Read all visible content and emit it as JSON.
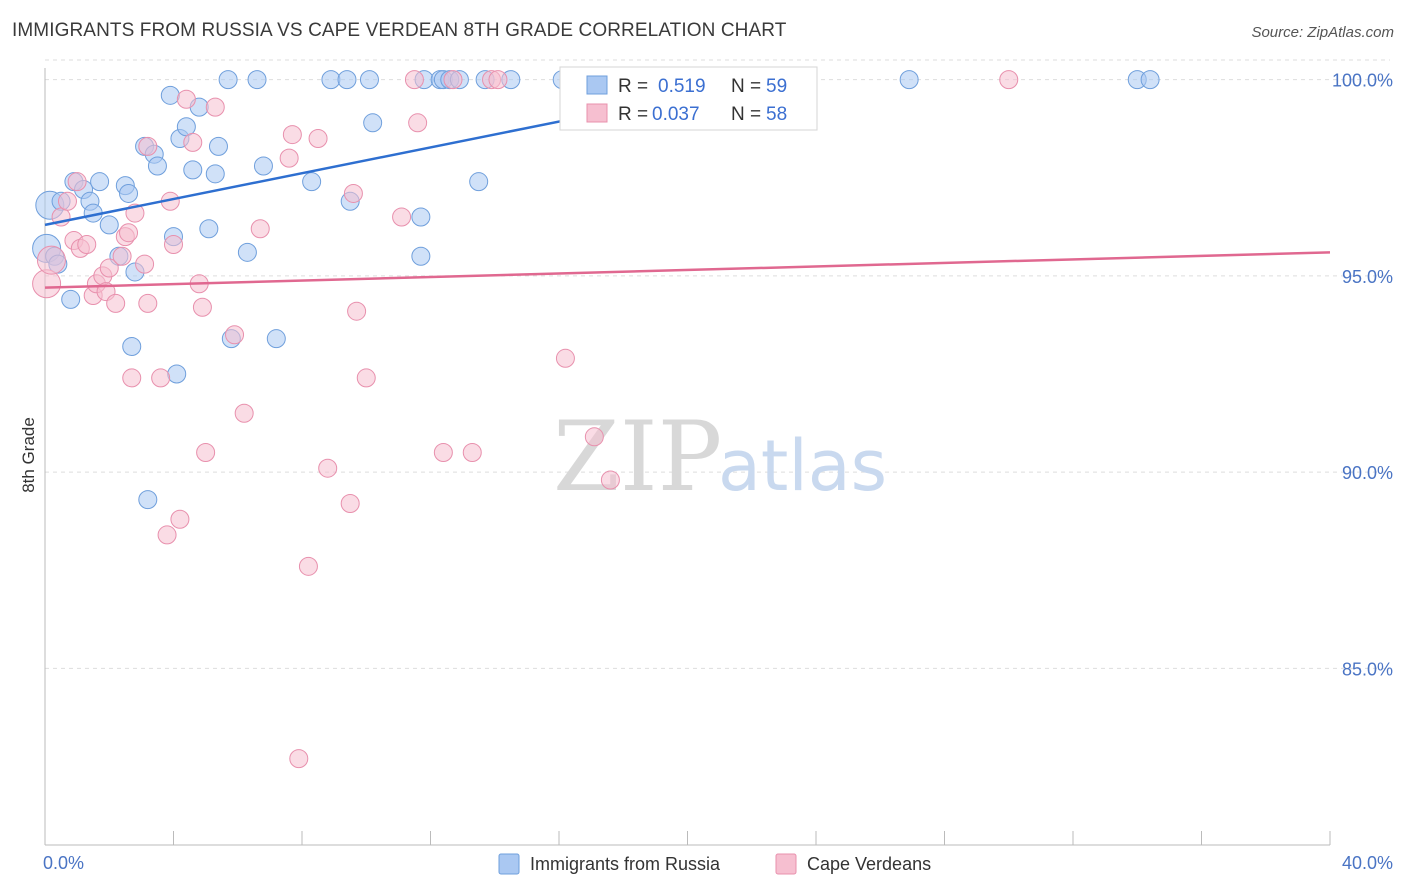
{
  "title": "IMMIGRANTS FROM RUSSIA VS CAPE VERDEAN 8TH GRADE CORRELATION CHART",
  "source": "Source: ZipAtlas.com",
  "watermark": {
    "zip": "ZIP",
    "atlas": "atlas"
  },
  "legend_stats": {
    "r_label": "R =",
    "n_label": "N =",
    "russia": {
      "r": "0.519",
      "n": "59"
    },
    "cape": {
      "r": "0.037",
      "n": "58"
    }
  },
  "colors": {
    "russia_fill": "#aac8f2",
    "russia_stroke": "#6f9fdc",
    "russia_line": "#2e6fd0",
    "cape_fill": "#f6bfd0",
    "cape_stroke": "#e890ad",
    "cape_line": "#e06890",
    "axis_label": "#4a74c4",
    "grid": "#dddddd"
  },
  "chart_data": {
    "type": "scatter",
    "title": "IMMIGRANTS FROM RUSSIA VS CAPE VERDEAN 8TH GRADE CORRELATION CHART",
    "xlabel": "",
    "ylabel": "8th Grade",
    "xlim": [
      0,
      40
    ],
    "ylim": [
      80.5,
      100.5
    ],
    "x_tick_labels": [
      "0.0%",
      "40.0%"
    ],
    "y_ticks": [
      85,
      90,
      95,
      100
    ],
    "y_tick_labels": [
      "85.0%",
      "90.0%",
      "95.0%",
      "100.0%"
    ],
    "grid": "horizontal dashed",
    "legend_position": "bottom",
    "series": [
      {
        "name": "Immigrants from Russia",
        "r": 0.519,
        "n": 59,
        "trend": {
          "x": [
            0,
            22.5
          ],
          "y": [
            96.3,
            100.0
          ]
        },
        "points": [
          [
            0.05,
            95.7
          ],
          [
            0.15,
            96.8
          ],
          [
            0.3,
            95.5
          ],
          [
            0.8,
            94.4
          ],
          [
            0.5,
            96.9
          ],
          [
            0.9,
            97.4
          ],
          [
            1.2,
            97.2
          ],
          [
            1.4,
            96.9
          ],
          [
            1.5,
            96.6
          ],
          [
            1.7,
            97.4
          ],
          [
            2.0,
            96.3
          ],
          [
            2.3,
            95.5
          ],
          [
            2.5,
            97.3
          ],
          [
            2.6,
            97.1
          ],
          [
            2.7,
            93.2
          ],
          [
            2.8,
            95.1
          ],
          [
            3.1,
            98.3
          ],
          [
            3.2,
            89.3
          ],
          [
            3.4,
            98.1
          ],
          [
            3.5,
            97.8
          ],
          [
            3.9,
            99.6
          ],
          [
            4.0,
            96.0
          ],
          [
            4.1,
            92.5
          ],
          [
            4.2,
            98.5
          ],
          [
            4.4,
            98.8
          ],
          [
            4.6,
            97.7
          ],
          [
            4.8,
            99.3
          ],
          [
            5.1,
            96.2
          ],
          [
            5.3,
            97.6
          ],
          [
            5.4,
            98.3
          ],
          [
            5.7,
            100.0
          ],
          [
            5.8,
            93.4
          ],
          [
            6.3,
            95.6
          ],
          [
            6.6,
            100.0
          ],
          [
            6.8,
            97.8
          ],
          [
            7.2,
            93.4
          ],
          [
            8.3,
            97.4
          ],
          [
            8.9,
            100.0
          ],
          [
            9.4,
            100.0
          ],
          [
            9.5,
            96.9
          ],
          [
            10.1,
            100.0
          ],
          [
            10.2,
            98.9
          ],
          [
            11.7,
            96.5
          ],
          [
            11.7,
            95.5
          ],
          [
            11.8,
            100.0
          ],
          [
            12.3,
            100.0
          ],
          [
            12.4,
            100.0
          ],
          [
            12.6,
            100.0
          ],
          [
            12.9,
            100.0
          ],
          [
            13.5,
            97.4
          ],
          [
            13.7,
            100.0
          ],
          [
            14.5,
            100.0
          ],
          [
            16.1,
            100.0
          ],
          [
            18.0,
            100.0
          ],
          [
            22.0,
            100.0
          ],
          [
            26.9,
            100.0
          ],
          [
            34.0,
            100.0
          ],
          [
            34.4,
            100.0
          ],
          [
            0.4,
            95.3
          ]
        ]
      },
      {
        "name": "Cape Verdeans",
        "r": 0.037,
        "n": 58,
        "trend": {
          "x": [
            0,
            40
          ],
          "y": [
            94.7,
            95.6
          ]
        },
        "points": [
          [
            0.05,
            94.8
          ],
          [
            0.2,
            95.4
          ],
          [
            0.5,
            96.5
          ],
          [
            0.7,
            96.9
          ],
          [
            0.9,
            95.9
          ],
          [
            1.0,
            97.4
          ],
          [
            1.1,
            95.7
          ],
          [
            1.3,
            95.8
          ],
          [
            1.5,
            94.5
          ],
          [
            1.6,
            94.8
          ],
          [
            1.8,
            95.0
          ],
          [
            1.9,
            94.6
          ],
          [
            2.0,
            95.2
          ],
          [
            2.2,
            94.3
          ],
          [
            2.4,
            95.5
          ],
          [
            2.5,
            96.0
          ],
          [
            2.6,
            96.1
          ],
          [
            2.7,
            92.4
          ],
          [
            2.8,
            96.6
          ],
          [
            3.1,
            95.3
          ],
          [
            3.2,
            98.3
          ],
          [
            3.2,
            94.3
          ],
          [
            3.6,
            92.4
          ],
          [
            3.8,
            88.4
          ],
          [
            3.9,
            96.9
          ],
          [
            4.0,
            95.8
          ],
          [
            4.2,
            88.8
          ],
          [
            4.4,
            99.5
          ],
          [
            4.6,
            98.4
          ],
          [
            4.8,
            94.8
          ],
          [
            4.9,
            94.2
          ],
          [
            5.0,
            90.5
          ],
          [
            5.3,
            99.3
          ],
          [
            5.9,
            93.5
          ],
          [
            6.2,
            91.5
          ],
          [
            6.7,
            96.2
          ],
          [
            7.6,
            98.0
          ],
          [
            7.7,
            98.6
          ],
          [
            7.9,
            82.7
          ],
          [
            8.2,
            87.6
          ],
          [
            8.5,
            98.5
          ],
          [
            8.8,
            90.1
          ],
          [
            9.5,
            89.2
          ],
          [
            9.6,
            97.1
          ],
          [
            9.7,
            94.1
          ],
          [
            10.0,
            92.4
          ],
          [
            11.1,
            96.5
          ],
          [
            11.5,
            100.0
          ],
          [
            11.6,
            98.9
          ],
          [
            12.4,
            90.5
          ],
          [
            12.7,
            100.0
          ],
          [
            13.3,
            90.5
          ],
          [
            13.9,
            100.0
          ],
          [
            14.1,
            100.0
          ],
          [
            16.2,
            92.9
          ],
          [
            17.1,
            90.9
          ],
          [
            17.6,
            89.8
          ],
          [
            30.0,
            100.0
          ]
        ]
      }
    ]
  }
}
